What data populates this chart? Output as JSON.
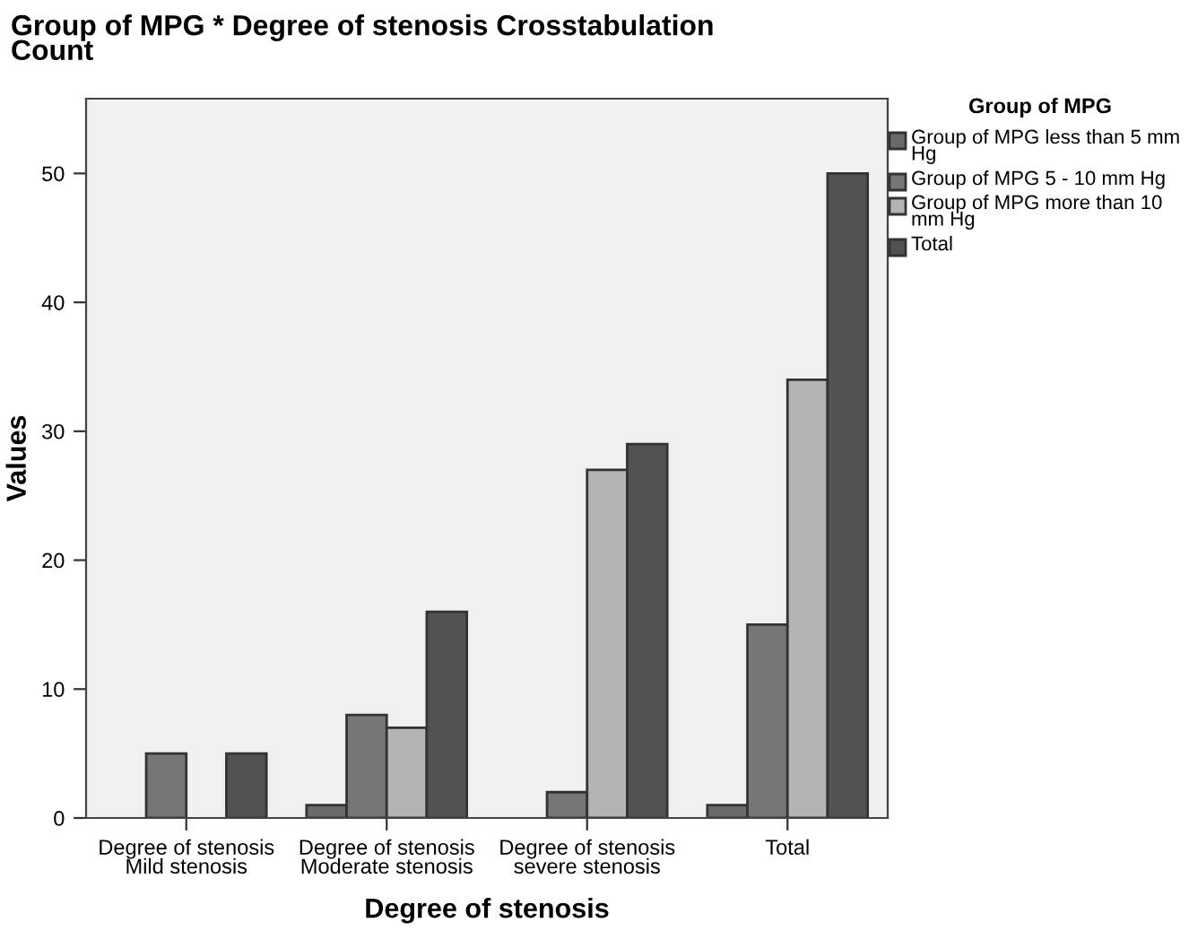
{
  "chart_data": {
    "type": "bar",
    "title": "Group of MPG * Degree of stenosis Crosstabulation\nCount",
    "xlabel": "Degree of stenosis",
    "ylabel": "Values",
    "legend_title": "Group of MPG",
    "categories": [
      "Degree of stenosis\nMild stenosis",
      "Degree of stenosis\nModerate stenosis",
      "Degree of stenosis\nsevere stenosis",
      "Total"
    ],
    "series": [
      {
        "name": "Group of MPG less than 5 mm Hg",
        "color": "#6a6a6a",
        "values": [
          0,
          1,
          0,
          1
        ]
      },
      {
        "name": "Group of MPG 5 - 10 mm Hg",
        "color": "#767676",
        "values": [
          5,
          8,
          2,
          15
        ]
      },
      {
        "name": "Group of MPG more than 10 mm Hg",
        "color": "#b4b4b4",
        "values": [
          0,
          7,
          27,
          34
        ]
      },
      {
        "name": "Total",
        "color": "#525252",
        "values": [
          5,
          16,
          29,
          50
        ]
      }
    ],
    "ylim": [
      0,
      55.8
    ],
    "yticks": [
      0,
      10,
      20,
      30,
      40,
      50
    ],
    "grid": false,
    "legend": "right"
  }
}
